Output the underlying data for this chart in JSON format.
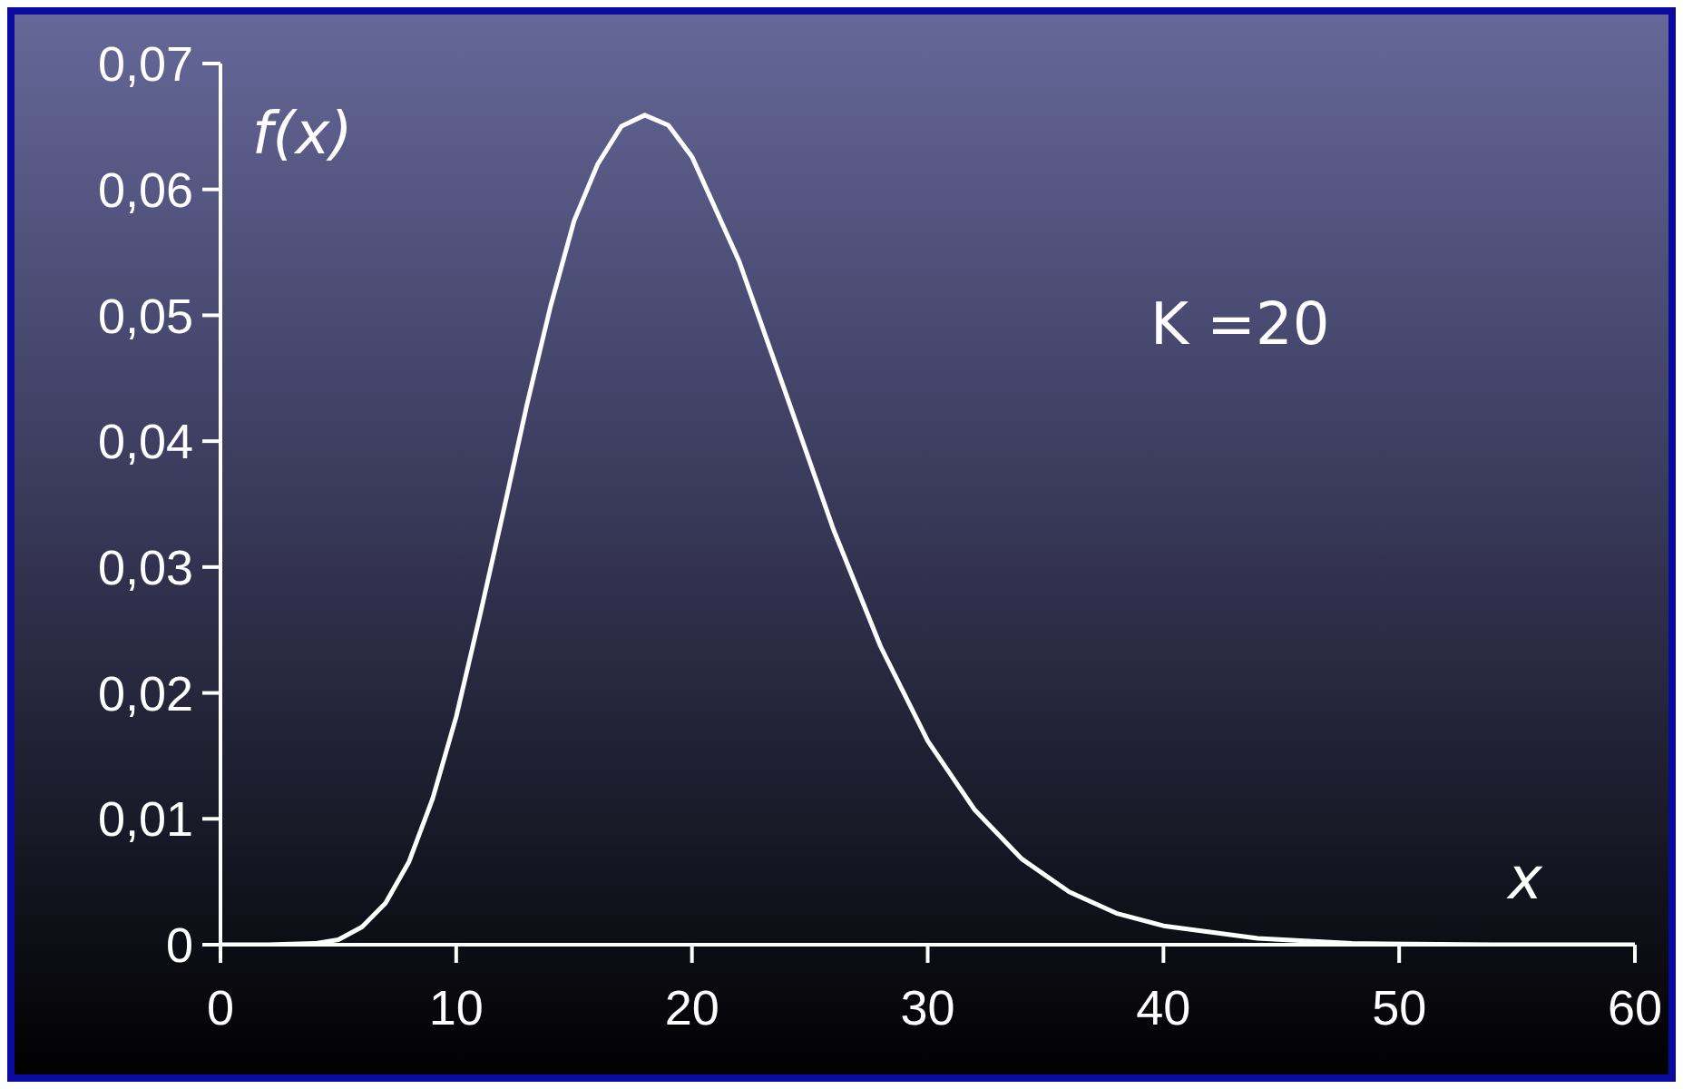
{
  "chart_data": {
    "type": "line",
    "xlabel": "x",
    "ylabel": "f(x)",
    "annotations": [
      "K =20"
    ],
    "x": [
      0,
      2,
      4,
      5,
      6,
      7,
      8,
      9,
      10,
      11,
      12,
      13,
      14,
      15,
      16,
      17,
      18,
      19,
      20,
      22,
      24,
      26,
      28,
      30,
      32,
      34,
      36,
      38,
      40,
      44,
      48,
      54,
      60
    ],
    "series": [
      {
        "color": "#ffffff",
        "values": [
          0,
          0,
          0.0001,
          0.0004,
          0.0014,
          0.0033,
          0.0066,
          0.0116,
          0.0181,
          0.0261,
          0.0344,
          0.0429,
          0.0507,
          0.0575,
          0.062,
          0.065,
          0.0659,
          0.0651,
          0.0626,
          0.0543,
          0.0437,
          0.033,
          0.0237,
          0.0162,
          0.0107,
          0.0068,
          0.0042,
          0.0025,
          0.0015,
          0.0005,
          0.0001,
          0,
          0
        ]
      }
    ],
    "xlim": [
      0,
      60
    ],
    "xticks": [
      0,
      10,
      20,
      30,
      40,
      50,
      60
    ],
    "ylim": [
      0,
      0.07
    ],
    "yticks": [
      {
        "value": 0,
        "label": "0"
      },
      {
        "value": 0.01,
        "label": "0,01"
      },
      {
        "value": 0.02,
        "label": "0,02"
      },
      {
        "value": 0.03,
        "label": "0,03"
      },
      {
        "value": 0.04,
        "label": "0,04"
      },
      {
        "value": 0.05,
        "label": "0,05"
      },
      {
        "value": 0.06,
        "label": "0,06"
      },
      {
        "value": 0.07,
        "label": "0,07"
      }
    ],
    "grid": false,
    "legend": false
  }
}
